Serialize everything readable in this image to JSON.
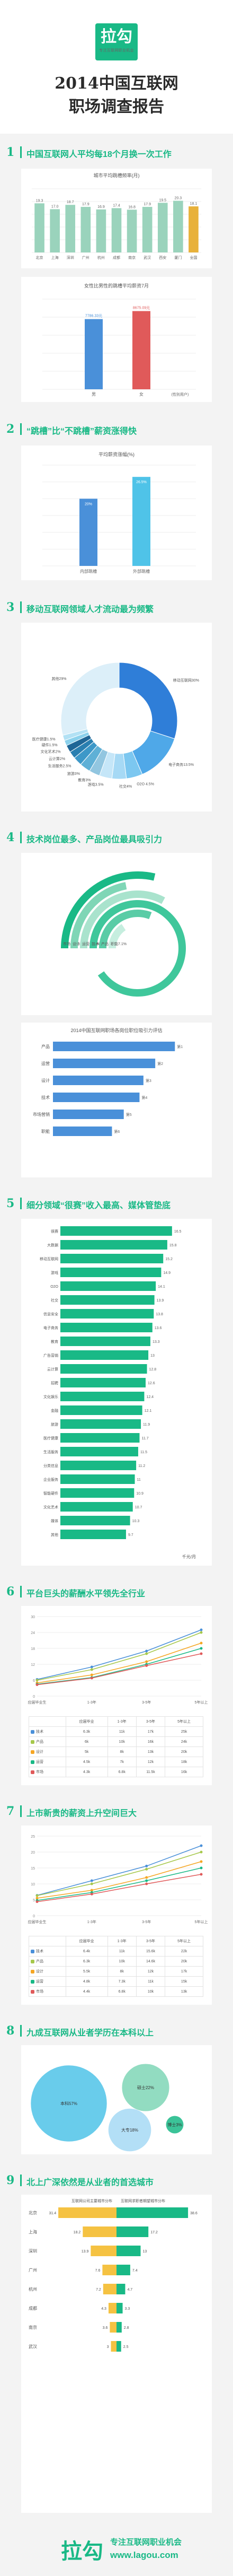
{
  "header": {
    "logo": "拉勾",
    "logo_sub": "专注互联网职业机会",
    "title_line1": "2014中国互联网",
    "title_line2": "职场调查报告"
  },
  "sections": {
    "s1": {
      "num": "1",
      "title": "中国互联网人平均每18个月换一次工作"
    },
    "s2": {
      "num": "2",
      "title": "“跳槽”比“不跳槽”薪资涨得快"
    },
    "s3": {
      "num": "3",
      "title": "移动互联网领域人才流动最为频繁"
    },
    "s4": {
      "num": "4",
      "title": "技术岗位最多、产品岗位最具吸引力"
    },
    "s5": {
      "num": "5",
      "title": "细分领域“很赛”收入最高、媒体管垫底"
    },
    "s6": {
      "num": "6",
      "title": "平台巨头的薪酬水平领先全行业"
    },
    "s7": {
      "num": "7",
      "title": "上市新贵的薪资上升空间巨大"
    },
    "s8": {
      "num": "8",
      "title": "九成互联网从业者学历在本科以上"
    },
    "s9": {
      "num": "9",
      "title": "北上广深依然是从业者的首选城市"
    }
  },
  "chart_data": [
    {
      "id": "city-tenure",
      "type": "bar",
      "title": "城市平均跳槽频率(月)",
      "categories": [
        "北京",
        "上海",
        "深圳",
        "广州",
        "杭州",
        "成都",
        "南京",
        "武汉",
        "西安",
        "厦门",
        "全国"
      ],
      "values": [
        19.3,
        17.0,
        18.7,
        17.9,
        16.9,
        17.4,
        16.8,
        17.9,
        19.5,
        20.3,
        18.1
      ],
      "value_labels": [
        "19.3",
        "17.0",
        "18.7",
        "17.9",
        "16.9",
        "17.4",
        "16.8",
        "17.9",
        "19.5",
        "20.3",
        "18.1"
      ]
    },
    {
      "id": "gender-salary",
      "type": "bar",
      "title": "女性比男性的跳槽平均薪资7月",
      "categories": [
        "男",
        "女"
      ],
      "values": [
        7786.3,
        8675.1
      ],
      "value_labels": [
        "7786.33元",
        "8675.09元"
      ],
      "xlabel": "(性别用户)"
    },
    {
      "id": "hop-salary",
      "type": "bar",
      "title": "平均薪资涨幅(%)",
      "categories": [
        "内部跳槽",
        "外部跳槽"
      ],
      "values": [
        20,
        26.5
      ],
      "value_labels": [
        "20%",
        "26.5%"
      ]
    },
    {
      "id": "field-flow",
      "type": "pie",
      "slices": [
        {
          "label": "移动互联网",
          "value": 30.0,
          "text": "移动互联网30%"
        },
        {
          "label": "电子商务",
          "value": 13.5,
          "text": "电子商务13.5%"
        },
        {
          "label": "O2O",
          "value": 4.5,
          "text": "O2O 4.5%"
        },
        {
          "label": "社交",
          "value": 4.0,
          "text": "社交4%"
        },
        {
          "label": "游戏",
          "value": 3.5,
          "text": "游戏3.5%"
        },
        {
          "label": "教育",
          "value": 3.0,
          "text": "教育3%"
        },
        {
          "label": "旅游",
          "value": 3.0,
          "text": "旅游3%"
        },
        {
          "label": "生活服务",
          "value": 2.5,
          "text": "生活服务2.5%"
        },
        {
          "label": "云计算",
          "value": 2.0,
          "text": "云计算2%"
        },
        {
          "label": "文化艺术",
          "value": 2.0,
          "text": "文化艺术2%"
        },
        {
          "label": "硬件",
          "value": 1.5,
          "text": "硬件1.5%"
        },
        {
          "label": "医疗健康",
          "value": 1.5,
          "text": "医疗健康1.5%"
        },
        {
          "label": "其他",
          "value": 29.0,
          "text": "其他29%"
        }
      ]
    },
    {
      "id": "job-ranking",
      "type": "bar",
      "title": "2014中国互联网职场各岗位职位吸引力评估",
      "categories": [
        "产品",
        "运营",
        "设计",
        "技术",
        "市场营销",
        "职能"
      ],
      "values": [
        62,
        52,
        46,
        44,
        36,
        30
      ]
    },
    {
      "id": "field-salary",
      "type": "bar",
      "title": "细分领域平均月薪(千元/月)",
      "categories": [
        "很赛",
        "大数据",
        "移动互联网",
        "游戏",
        "O2O",
        "社交",
        "信息安全",
        "电子商务",
        "教育",
        "广告营销",
        "云计算",
        "招聘",
        "文化娱乐",
        "金融",
        "旅游",
        "医疗健康",
        "生活服务",
        "分类信息",
        "企业服务",
        "智能硬件",
        "文化艺术",
        "媒体",
        "其他"
      ],
      "values": [
        16.5,
        15.8,
        15.2,
        14.9,
        14.1,
        13.9,
        13.8,
        13.6,
        13.3,
        13.0,
        12.8,
        12.6,
        12.4,
        12.1,
        11.9,
        11.7,
        11.5,
        11.2,
        11.0,
        10.9,
        10.7,
        10.3,
        9.7
      ],
      "xlabel": "千元/月"
    },
    {
      "id": "giant-salary",
      "type": "line",
      "title": "",
      "x": [
        "应届毕业生",
        "1-3年",
        "3-5年",
        "5年以上"
      ],
      "series": [
        {
          "name": "技术",
          "values": [
            6.3,
            11.0,
            17.0,
            25.0
          ]
        },
        {
          "name": "产品",
          "values": [
            6.0,
            10.0,
            16.0,
            24.0
          ]
        },
        {
          "name": "设计",
          "values": [
            5.0,
            8.0,
            13.0,
            20.0
          ]
        },
        {
          "name": "运营",
          "values": [
            4.5,
            7.0,
            12.0,
            18.0
          ]
        },
        {
          "name": "市场",
          "values": [
            4.3,
            6.8,
            11.5,
            16.0
          ]
        }
      ],
      "ylim": [
        0,
        30
      ]
    },
    {
      "id": "newly-listed",
      "type": "line",
      "title": "",
      "x": [
        "应届毕业生",
        "1-3年",
        "3-5年",
        "5年以上"
      ],
      "series": [
        {
          "name": "技术",
          "values": [
            6.4,
            11.0,
            15.6,
            22.0
          ]
        },
        {
          "name": "产品",
          "values": [
            6.3,
            10.0,
            14.6,
            20.0
          ]
        },
        {
          "name": "设计",
          "values": [
            5.5,
            8.0,
            12.0,
            17.0
          ]
        },
        {
          "name": "运营",
          "values": [
            4.8,
            7.3,
            11.0,
            15.0
          ]
        },
        {
          "name": "市场",
          "values": [
            4.4,
            6.8,
            10.0,
            13.0
          ]
        }
      ],
      "ylim": [
        0,
        25
      ]
    },
    {
      "id": "education",
      "type": "bubble",
      "categories": [
        "本科",
        "硕士",
        "大专",
        "博士及以上"
      ],
      "values": [
        57,
        22,
        18,
        3
      ],
      "value_labels": [
        "本科57%",
        "硕士22%",
        "大专18%",
        "博士3%"
      ]
    },
    {
      "id": "city-share",
      "type": "bar",
      "title": "互联网公司主要城市分布%",
      "categories": [
        "北京",
        "上海",
        "深圳",
        "广州",
        "杭州",
        "成都",
        "南京",
        "武汉"
      ],
      "series": [
        {
          "name": "互联网公司主要城市分布",
          "values": [
            31.4,
            18.2,
            13.9,
            7.6,
            7.2,
            4.3,
            3.6,
            3.0
          ]
        },
        {
          "name": "互联网求职者期望城市分布",
          "values": [
            38.6,
            17.2,
            13.0,
            7.4,
            4.7,
            3.3,
            2.8,
            2.5
          ]
        }
      ]
    }
  ],
  "job_legend": [
    {
      "label": "市场营销",
      "pct": "13%"
    },
    {
      "label": "设计",
      "pct": "10%"
    },
    {
      "label": "运营",
      "pct": "14.9%"
    },
    {
      "label": "技术",
      "pct": "41%"
    },
    {
      "label": "产品",
      "pct": "14%"
    },
    {
      "label": "职能",
      "pct": "7.1%"
    }
  ],
  "ranks_labels": [
    "第1",
    "第2",
    "第3",
    "第4",
    "第5",
    "第6"
  ],
  "giant_table": {
    "head": [
      "",
      "应届毕业",
      "1-3年",
      "3-5年",
      "5年以上"
    ],
    "rows": [
      [
        "技术",
        "6.3k",
        "11k",
        "17k",
        "25k"
      ],
      [
        "产品",
        "6k",
        "10k",
        "16k",
        "24k"
      ],
      [
        "设计",
        "5k",
        "8k",
        "13k",
        "20k"
      ],
      [
        "运营",
        "4.5k",
        "7k",
        "12k",
        "18k"
      ],
      [
        "市场",
        "4.3k",
        "6.8k",
        "11.5k",
        "16k"
      ]
    ]
  },
  "listed_table": {
    "head": [
      "",
      "应届毕业",
      "1-3年",
      "3-5年",
      "5年以上"
    ],
    "rows": [
      [
        "技术",
        "6.4k",
        "11k",
        "15.6k",
        "22k"
      ],
      [
        "产品",
        "6.3k",
        "10k",
        "14.6k",
        "20k"
      ],
      [
        "设计",
        "5.5k",
        "8k",
        "12k",
        "17k"
      ],
      [
        "运营",
        "4.8k",
        "7.3k",
        "11k",
        "15k"
      ],
      [
        "市场",
        "4.4k",
        "6.8k",
        "10k",
        "13k"
      ]
    ]
  },
  "series_colors": [
    "#4a90d9",
    "#a6c84b",
    "#f5a623",
    "#19b986",
    "#e05a5a"
  ],
  "footer": {
    "logo": "拉勾",
    "line1": "专注互联网职业机会",
    "line2": "www.lagou.com"
  }
}
